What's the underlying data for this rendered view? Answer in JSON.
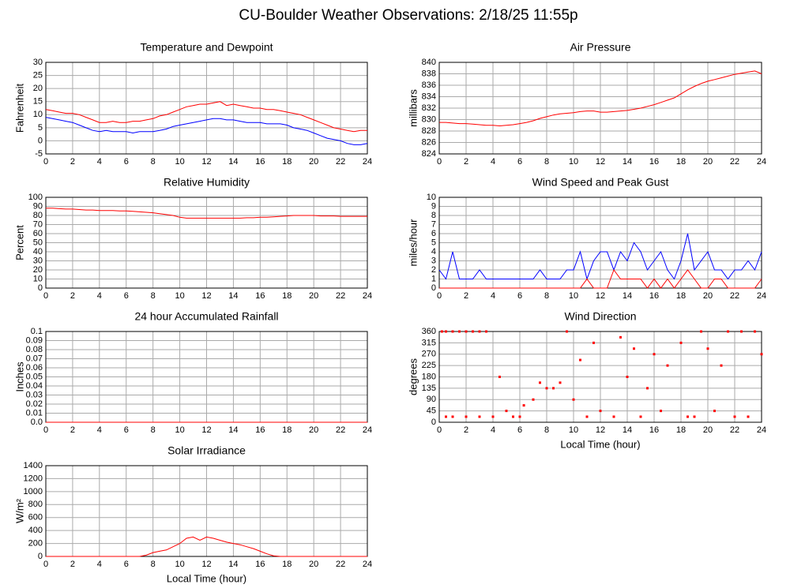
{
  "title": "CU-Boulder Weather Observations: 2/18/25 11:55p",
  "chart_data": [
    {
      "type": "line",
      "title": "Temperature and Dewpoint",
      "ylabel": "Fahrenheit",
      "grid": true,
      "x": [
        0,
        0.5,
        1,
        1.5,
        2,
        2.5,
        3,
        3.5,
        4,
        4.5,
        5,
        5.5,
        6,
        6.5,
        7,
        7.5,
        8,
        8.5,
        9,
        9.5,
        10,
        10.5,
        11,
        11.5,
        12,
        12.5,
        13,
        13.5,
        14,
        14.5,
        15,
        15.5,
        16,
        16.5,
        17,
        17.5,
        18,
        18.5,
        19,
        19.5,
        20,
        20.5,
        21,
        21.5,
        22,
        22.5,
        23,
        23.5,
        24
      ],
      "series": [
        {
          "color": "#ff0000",
          "values": [
            12,
            11.5,
            11,
            10.5,
            10.5,
            10,
            9,
            8,
            7,
            7,
            7.5,
            7,
            7,
            7.5,
            7.5,
            8,
            8.5,
            9.5,
            10,
            11,
            12,
            13,
            13.5,
            14,
            14,
            14.5,
            15,
            13.5,
            14,
            13.5,
            13,
            12.5,
            12.5,
            12,
            12,
            11.5,
            11,
            10.5,
            10,
            9,
            8,
            7,
            6,
            5,
            4.5,
            4,
            3.5,
            4,
            4
          ]
        },
        {
          "color": "#0000ff",
          "values": [
            9,
            8.5,
            8,
            7.5,
            7,
            6,
            5,
            4,
            3.5,
            4,
            3.5,
            3.5,
            3.5,
            3,
            3.5,
            3.5,
            3.5,
            4,
            4.5,
            5.5,
            6,
            6.5,
            7,
            7.5,
            8,
            8.5,
            8.5,
            8,
            8,
            7.5,
            7,
            7,
            7,
            6.5,
            6.5,
            6.5,
            6,
            5,
            4.5,
            4,
            3,
            2,
            1,
            0.5,
            0,
            -1,
            -1.5,
            -1.5,
            -1
          ]
        }
      ],
      "xlim": [
        0,
        24
      ],
      "xticks": [
        0,
        2,
        4,
        6,
        8,
        10,
        12,
        14,
        16,
        18,
        20,
        22,
        24
      ],
      "ylim": [
        -5,
        30
      ],
      "yticks": [
        -5,
        0,
        5,
        10,
        15,
        20,
        25,
        30
      ]
    },
    {
      "type": "line",
      "title": "Air Pressure",
      "ylabel": "millibars",
      "grid": true,
      "x": [
        0,
        0.5,
        1,
        1.5,
        2,
        2.5,
        3,
        3.5,
        4,
        4.5,
        5,
        5.5,
        6,
        6.5,
        7,
        7.5,
        8,
        8.5,
        9,
        9.5,
        10,
        10.5,
        11,
        11.5,
        12,
        12.5,
        13,
        13.5,
        14,
        14.5,
        15,
        15.5,
        16,
        16.5,
        17,
        17.5,
        18,
        18.5,
        19,
        19.5,
        20,
        20.5,
        21,
        21.5,
        22,
        22.5,
        23,
        23.5,
        24
      ],
      "series": [
        {
          "color": "#ff0000",
          "values": [
            829.5,
            829.5,
            829.4,
            829.3,
            829.3,
            829.2,
            829.1,
            829,
            829,
            828.9,
            829,
            829.1,
            829.3,
            829.5,
            829.8,
            830.2,
            830.5,
            830.8,
            831,
            831.1,
            831.2,
            831.4,
            831.5,
            831.5,
            831.3,
            831.3,
            831.4,
            831.5,
            831.6,
            831.8,
            832,
            832.3,
            832.6,
            833,
            833.4,
            833.8,
            834.5,
            835.2,
            835.8,
            836.3,
            836.7,
            837,
            837.3,
            837.6,
            837.9,
            838.1,
            838.3,
            838.5,
            838
          ]
        }
      ],
      "xlim": [
        0,
        24
      ],
      "xticks": [
        0,
        2,
        4,
        6,
        8,
        10,
        12,
        14,
        16,
        18,
        20,
        22,
        24
      ],
      "ylim": [
        824,
        840
      ],
      "yticks": [
        824,
        826,
        828,
        830,
        832,
        834,
        836,
        838,
        840
      ]
    },
    {
      "type": "line",
      "title": "Relative Humidity",
      "ylabel": "Percent",
      "grid": true,
      "x": [
        0,
        0.5,
        1,
        1.5,
        2,
        2.5,
        3,
        3.5,
        4,
        4.5,
        5,
        5.5,
        6,
        6.5,
        7,
        7.5,
        8,
        8.5,
        9,
        9.5,
        10,
        10.5,
        11,
        11.5,
        12,
        12.5,
        13,
        13.5,
        14,
        14.5,
        15,
        15.5,
        16,
        16.5,
        17,
        17.5,
        18,
        18.5,
        19,
        19.5,
        20,
        20.5,
        21,
        21.5,
        22,
        22.5,
        23,
        23.5,
        24
      ],
      "series": [
        {
          "color": "#ff0000",
          "values": [
            88,
            88,
            87.5,
            87,
            87,
            86.5,
            86,
            86,
            85.5,
            85.5,
            85.5,
            85,
            85,
            84.5,
            84,
            83.5,
            83,
            82,
            81,
            80,
            78,
            77,
            77,
            77,
            77,
            77,
            77,
            77,
            77,
            77,
            77.5,
            77.5,
            78,
            78,
            78.5,
            79,
            79.5,
            80,
            80,
            80,
            80,
            79.5,
            79.5,
            79.5,
            79,
            79,
            79,
            79,
            79
          ]
        }
      ],
      "xlim": [
        0,
        24
      ],
      "xticks": [
        0,
        2,
        4,
        6,
        8,
        10,
        12,
        14,
        16,
        18,
        20,
        22,
        24
      ],
      "ylim": [
        0,
        100
      ],
      "yticks": [
        0,
        10,
        20,
        30,
        40,
        50,
        60,
        70,
        80,
        90,
        100
      ]
    },
    {
      "type": "line",
      "title": "Wind Speed and Peak Gust",
      "ylabel": "miles/hour",
      "grid": true,
      "x": [
        0,
        0.5,
        1,
        1.5,
        2,
        2.5,
        3,
        3.5,
        4,
        4.5,
        5,
        5.5,
        6,
        6.5,
        7,
        7.5,
        8,
        8.5,
        9,
        9.5,
        10,
        10.5,
        11,
        11.5,
        12,
        12.5,
        13,
        13.5,
        14,
        14.5,
        15,
        15.5,
        16,
        16.5,
        17,
        17.5,
        18,
        18.5,
        19,
        19.5,
        20,
        20.5,
        21,
        21.5,
        22,
        22.5,
        23,
        23.5,
        24
      ],
      "series": [
        {
          "color": "#0000ff",
          "values": [
            2,
            1,
            4,
            1,
            1,
            1,
            2,
            1,
            1,
            1,
            1,
            1,
            1,
            1,
            1,
            2,
            1,
            1,
            1,
            2,
            2,
            4,
            1,
            3,
            4,
            4,
            2,
            4,
            3,
            5,
            4,
            2,
            3,
            4,
            2,
            1,
            3,
            6,
            2,
            3,
            4,
            2,
            2,
            1,
            2,
            2,
            3,
            2,
            4
          ]
        },
        {
          "color": "#ff0000",
          "values": [
            0,
            0,
            0,
            0,
            0,
            0,
            0,
            0,
            0,
            0,
            0,
            0,
            0,
            0,
            0,
            0,
            0,
            0,
            0,
            0,
            0,
            0,
            1,
            0,
            0,
            0,
            2,
            1,
            1,
            1,
            1,
            0,
            1,
            0,
            1,
            0,
            1,
            2,
            1,
            0,
            0,
            1,
            1,
            0,
            0,
            0,
            0,
            0,
            1
          ]
        }
      ],
      "xlim": [
        0,
        24
      ],
      "xticks": [
        0,
        2,
        4,
        6,
        8,
        10,
        12,
        14,
        16,
        18,
        20,
        22,
        24
      ],
      "ylim": [
        0,
        10
      ],
      "yticks": [
        0,
        1,
        2,
        3,
        4,
        5,
        6,
        7,
        8,
        9,
        10
      ]
    },
    {
      "type": "line",
      "title": "24 hour Accumulated Rainfall",
      "ylabel": "Inches",
      "grid": true,
      "x": [
        0,
        24
      ],
      "series": [
        {
          "color": "#ff0000",
          "values": [
            0,
            0
          ]
        }
      ],
      "xlim": [
        0,
        24
      ],
      "xticks": [
        0,
        2,
        4,
        6,
        8,
        10,
        12,
        14,
        16,
        18,
        20,
        22,
        24
      ],
      "ylim": [
        0,
        0.1
      ],
      "yticks": [
        {
          "value": 0,
          "label": "0.0"
        },
        0.01,
        0.02,
        0.03,
        0.04,
        0.05,
        0.06,
        0.07,
        0.08,
        0.09,
        0.1
      ]
    },
    {
      "type": "scatter",
      "title": "Wind Direction",
      "ylabel": "degrees",
      "xlabel": "Local Time (hour)",
      "grid": true,
      "color": "#ff0000",
      "x": [
        0.2,
        0.5,
        1,
        1.5,
        2,
        2.5,
        3,
        0.5,
        1,
        2,
        3,
        4,
        3.5,
        4.5,
        5,
        5.5,
        6,
        6.3,
        7,
        7.5,
        8,
        8.5,
        9,
        9.5,
        10,
        10.5,
        11,
        11.5,
        12,
        13,
        13.5,
        14,
        14.5,
        15,
        15.5,
        16,
        16.5,
        17,
        18,
        18.5,
        19,
        19.5,
        20,
        20.5,
        21,
        21.5,
        22,
        22.5,
        23,
        23.5,
        24
      ],
      "y": [
        360,
        360,
        360,
        360,
        360,
        360,
        360,
        22,
        22,
        22,
        22,
        22,
        360,
        180,
        45,
        22,
        22,
        67,
        90,
        157,
        135,
        135,
        157,
        360,
        90,
        247,
        22,
        315,
        45,
        22,
        337,
        180,
        292,
        22,
        135,
        270,
        45,
        225,
        315,
        22,
        22,
        360,
        292,
        45,
        225,
        360,
        22,
        360,
        22,
        360,
        270
      ],
      "xlim": [
        0,
        24
      ],
      "xticks": [
        0,
        2,
        4,
        6,
        8,
        10,
        12,
        14,
        16,
        18,
        20,
        22,
        24
      ],
      "ylim": [
        0,
        360
      ],
      "yticks": [
        0,
        45,
        90,
        135,
        180,
        225,
        270,
        315,
        360
      ]
    },
    {
      "type": "line",
      "title": "Solar Irradiance",
      "ylabel": "W/m²",
      "xlabel": "Local Time (hour)",
      "grid": true,
      "x": [
        0,
        7,
        7.5,
        8,
        8.5,
        9,
        9.5,
        10,
        10.5,
        11,
        11.5,
        12,
        12.5,
        13,
        13.5,
        14,
        14.5,
        15,
        15.5,
        16,
        16.5,
        17,
        17.5,
        24
      ],
      "series": [
        {
          "color": "#ff0000",
          "values": [
            0,
            0,
            20,
            60,
            80,
            100,
            150,
            200,
            280,
            300,
            250,
            300,
            280,
            250,
            220,
            200,
            180,
            150,
            120,
            80,
            40,
            10,
            0,
            0
          ]
        }
      ],
      "xlim": [
        0,
        24
      ],
      "xticks": [
        0,
        2,
        4,
        6,
        8,
        10,
        12,
        14,
        16,
        18,
        20,
        22,
        24
      ],
      "ylim": [
        0,
        1400
      ],
      "yticks": [
        0,
        200,
        400,
        600,
        800,
        1000,
        1200,
        1400
      ]
    }
  ]
}
